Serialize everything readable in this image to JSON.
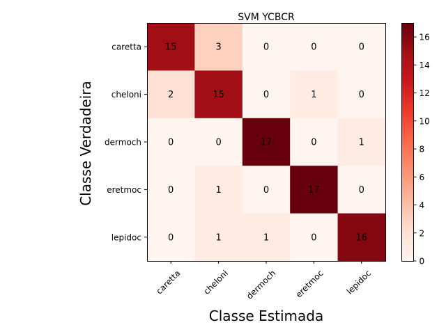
{
  "chart_data": {
    "type": "heatmap",
    "title": "SVM YCBCR",
    "xlabel": "Classe Estimada",
    "ylabel": "Classe Verdadeira",
    "x_categories": [
      "caretta",
      "cheloni",
      "dermoch",
      "eretmoc",
      "lepidoc"
    ],
    "y_categories": [
      "caretta",
      "cheloni",
      "dermoch",
      "eretmoc",
      "lepidoc"
    ],
    "values": [
      [
        15,
        3,
        0,
        0,
        0
      ],
      [
        2,
        15,
        0,
        1,
        0
      ],
      [
        0,
        0,
        17,
        0,
        1
      ],
      [
        0,
        1,
        0,
        17,
        0
      ],
      [
        0,
        1,
        1,
        0,
        16
      ]
    ],
    "colormap": "Reds",
    "colorbar": {
      "range": [
        0,
        17
      ],
      "ticks": [
        0,
        2,
        4,
        6,
        8,
        10,
        12,
        14,
        16
      ]
    },
    "x_tick_rotation_deg": 45
  }
}
